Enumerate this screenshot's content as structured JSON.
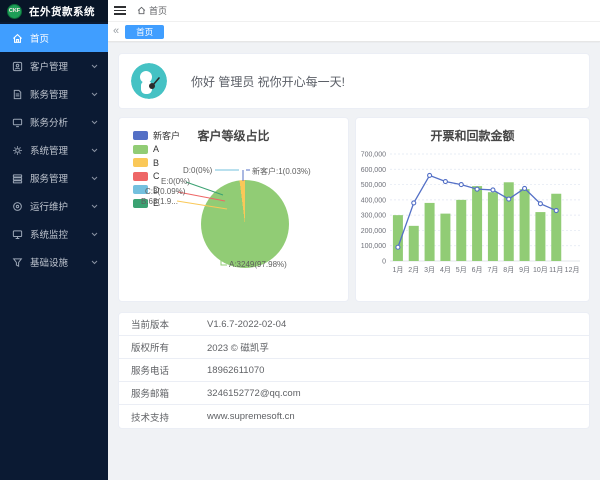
{
  "theme": {
    "sidebar_bg": "#0b1a33",
    "primary": "#409eff",
    "avatar_bg": "#45c2c4",
    "palette": [
      "#5470c6",
      "#91cc75",
      "#fac858",
      "#ee6666",
      "#73c0de",
      "#3ba272"
    ]
  },
  "app": {
    "logo_text": "CKF",
    "title": "在外货款系统"
  },
  "header": {
    "breadcrumb_home": "首页"
  },
  "tabbar": {
    "collapse_icon": "«",
    "active_tab": "首页"
  },
  "sidebar": {
    "items": [
      {
        "label": "首页",
        "icon": "home-icon",
        "active": true,
        "expandable": false
      },
      {
        "label": "客户管理",
        "icon": "customer-icon",
        "active": false,
        "expandable": true
      },
      {
        "label": "账务管理",
        "icon": "billing-icon",
        "active": false,
        "expandable": true
      },
      {
        "label": "账务分析",
        "icon": "analysis-icon",
        "active": false,
        "expandable": true
      },
      {
        "label": "系统管理",
        "icon": "settings-gear-icon",
        "active": false,
        "expandable": true
      },
      {
        "label": "服务管理",
        "icon": "service-icon",
        "active": false,
        "expandable": true
      },
      {
        "label": "运行维护",
        "icon": "maintenance-icon",
        "active": false,
        "expandable": true
      },
      {
        "label": "系统监控",
        "icon": "monitor-icon",
        "active": false,
        "expandable": true
      },
      {
        "label": "基础设施",
        "icon": "infrastructure-icon",
        "active": false,
        "expandable": true
      }
    ]
  },
  "greeting": {
    "message": "你好 管理员 祝你开心每一天!"
  },
  "info_table": {
    "rows": [
      {
        "label": "当前版本",
        "value": "V1.6.7-2022-02-04"
      },
      {
        "label": "版权所有",
        "value": "2023 © 磁凯孚"
      },
      {
        "label": "服务电话",
        "value": "18962611070"
      },
      {
        "label": "服务邮箱",
        "value": "3246152772@qq.com"
      },
      {
        "label": "技术支持",
        "value": "www.supremesoft.cn"
      }
    ]
  },
  "chart_data": [
    {
      "type": "pie",
      "title": "客户等级占比",
      "legend_position": "top-left",
      "legend": [
        "新客户",
        "A",
        "B",
        "C",
        "D",
        "E"
      ],
      "values": [
        1,
        3249,
        63,
        3,
        0,
        0
      ],
      "percents": [
        "0.03%",
        "97.98%",
        "1.9%",
        "0.09%",
        "0%",
        "0%"
      ],
      "colors": [
        "#5470c6",
        "#91cc75",
        "#fac858",
        "#ee6666",
        "#73c0de",
        "#3ba272"
      ],
      "point_labels": {
        "d": "D:0(0%)",
        "new_customer": "新客户:1(0.03%)",
        "e": "E:0(0%)",
        "c": "C:3(0.09%)",
        "b": "B:63(1.9...",
        "a": "A:3249(97.98%)"
      }
    },
    {
      "type": "bar",
      "title": "开票和回款金额",
      "categories": [
        "1月",
        "2月",
        "3月",
        "4月",
        "5月",
        "6月",
        "7月",
        "8月",
        "9月",
        "10月",
        "11月",
        "12月"
      ],
      "series": [
        {
          "name": "开票",
          "type": "bar",
          "color": "#91cc75",
          "values": [
            300000,
            230000,
            380000,
            310000,
            400000,
            490000,
            450000,
            515000,
            470000,
            320000,
            440000,
            0
          ]
        },
        {
          "name": "回款",
          "type": "line",
          "color": "#5470c6",
          "values": [
            90000,
            380000,
            560000,
            520000,
            500000,
            470000,
            465000,
            405000,
            475000,
            375000,
            330000,
            null
          ]
        }
      ],
      "ylim": [
        0,
        700000
      ],
      "ytick_step": 100000,
      "grid": true,
      "legend_position": "none"
    }
  ]
}
